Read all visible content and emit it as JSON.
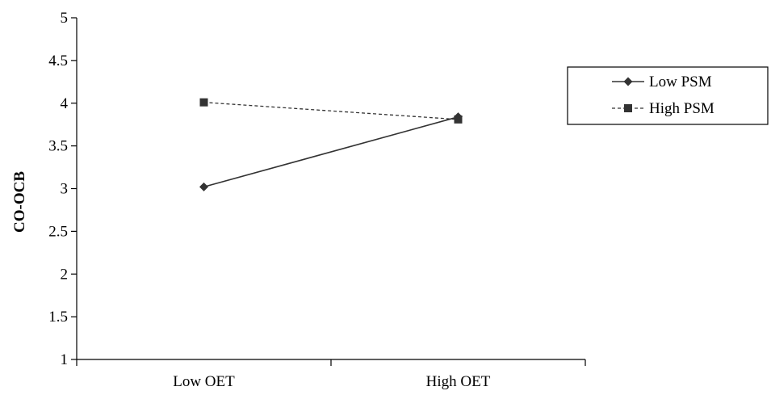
{
  "chart_data": {
    "type": "line",
    "categories": [
      "Low OET",
      "High OET"
    ],
    "ylabel": "CO-OCB",
    "xlabel": "",
    "title": "",
    "ylim": [
      1,
      5
    ],
    "yticks": [
      1,
      1.5,
      2,
      2.5,
      3,
      3.5,
      4,
      4.5,
      5
    ],
    "ytick_labels": [
      "1",
      "1.5",
      "2",
      "2.5",
      "3",
      "3.5",
      "4",
      "4.5",
      "5"
    ],
    "grid": false,
    "legend_position": "right",
    "series": [
      {
        "name": "Low PSM",
        "values": [
          3.02,
          3.84
        ],
        "line_style": "solid",
        "marker": "diamond",
        "color": "#333333"
      },
      {
        "name": "High PSM",
        "values": [
          4.01,
          3.81
        ],
        "line_style": "dashed",
        "marker": "square",
        "color": "#333333"
      }
    ]
  }
}
